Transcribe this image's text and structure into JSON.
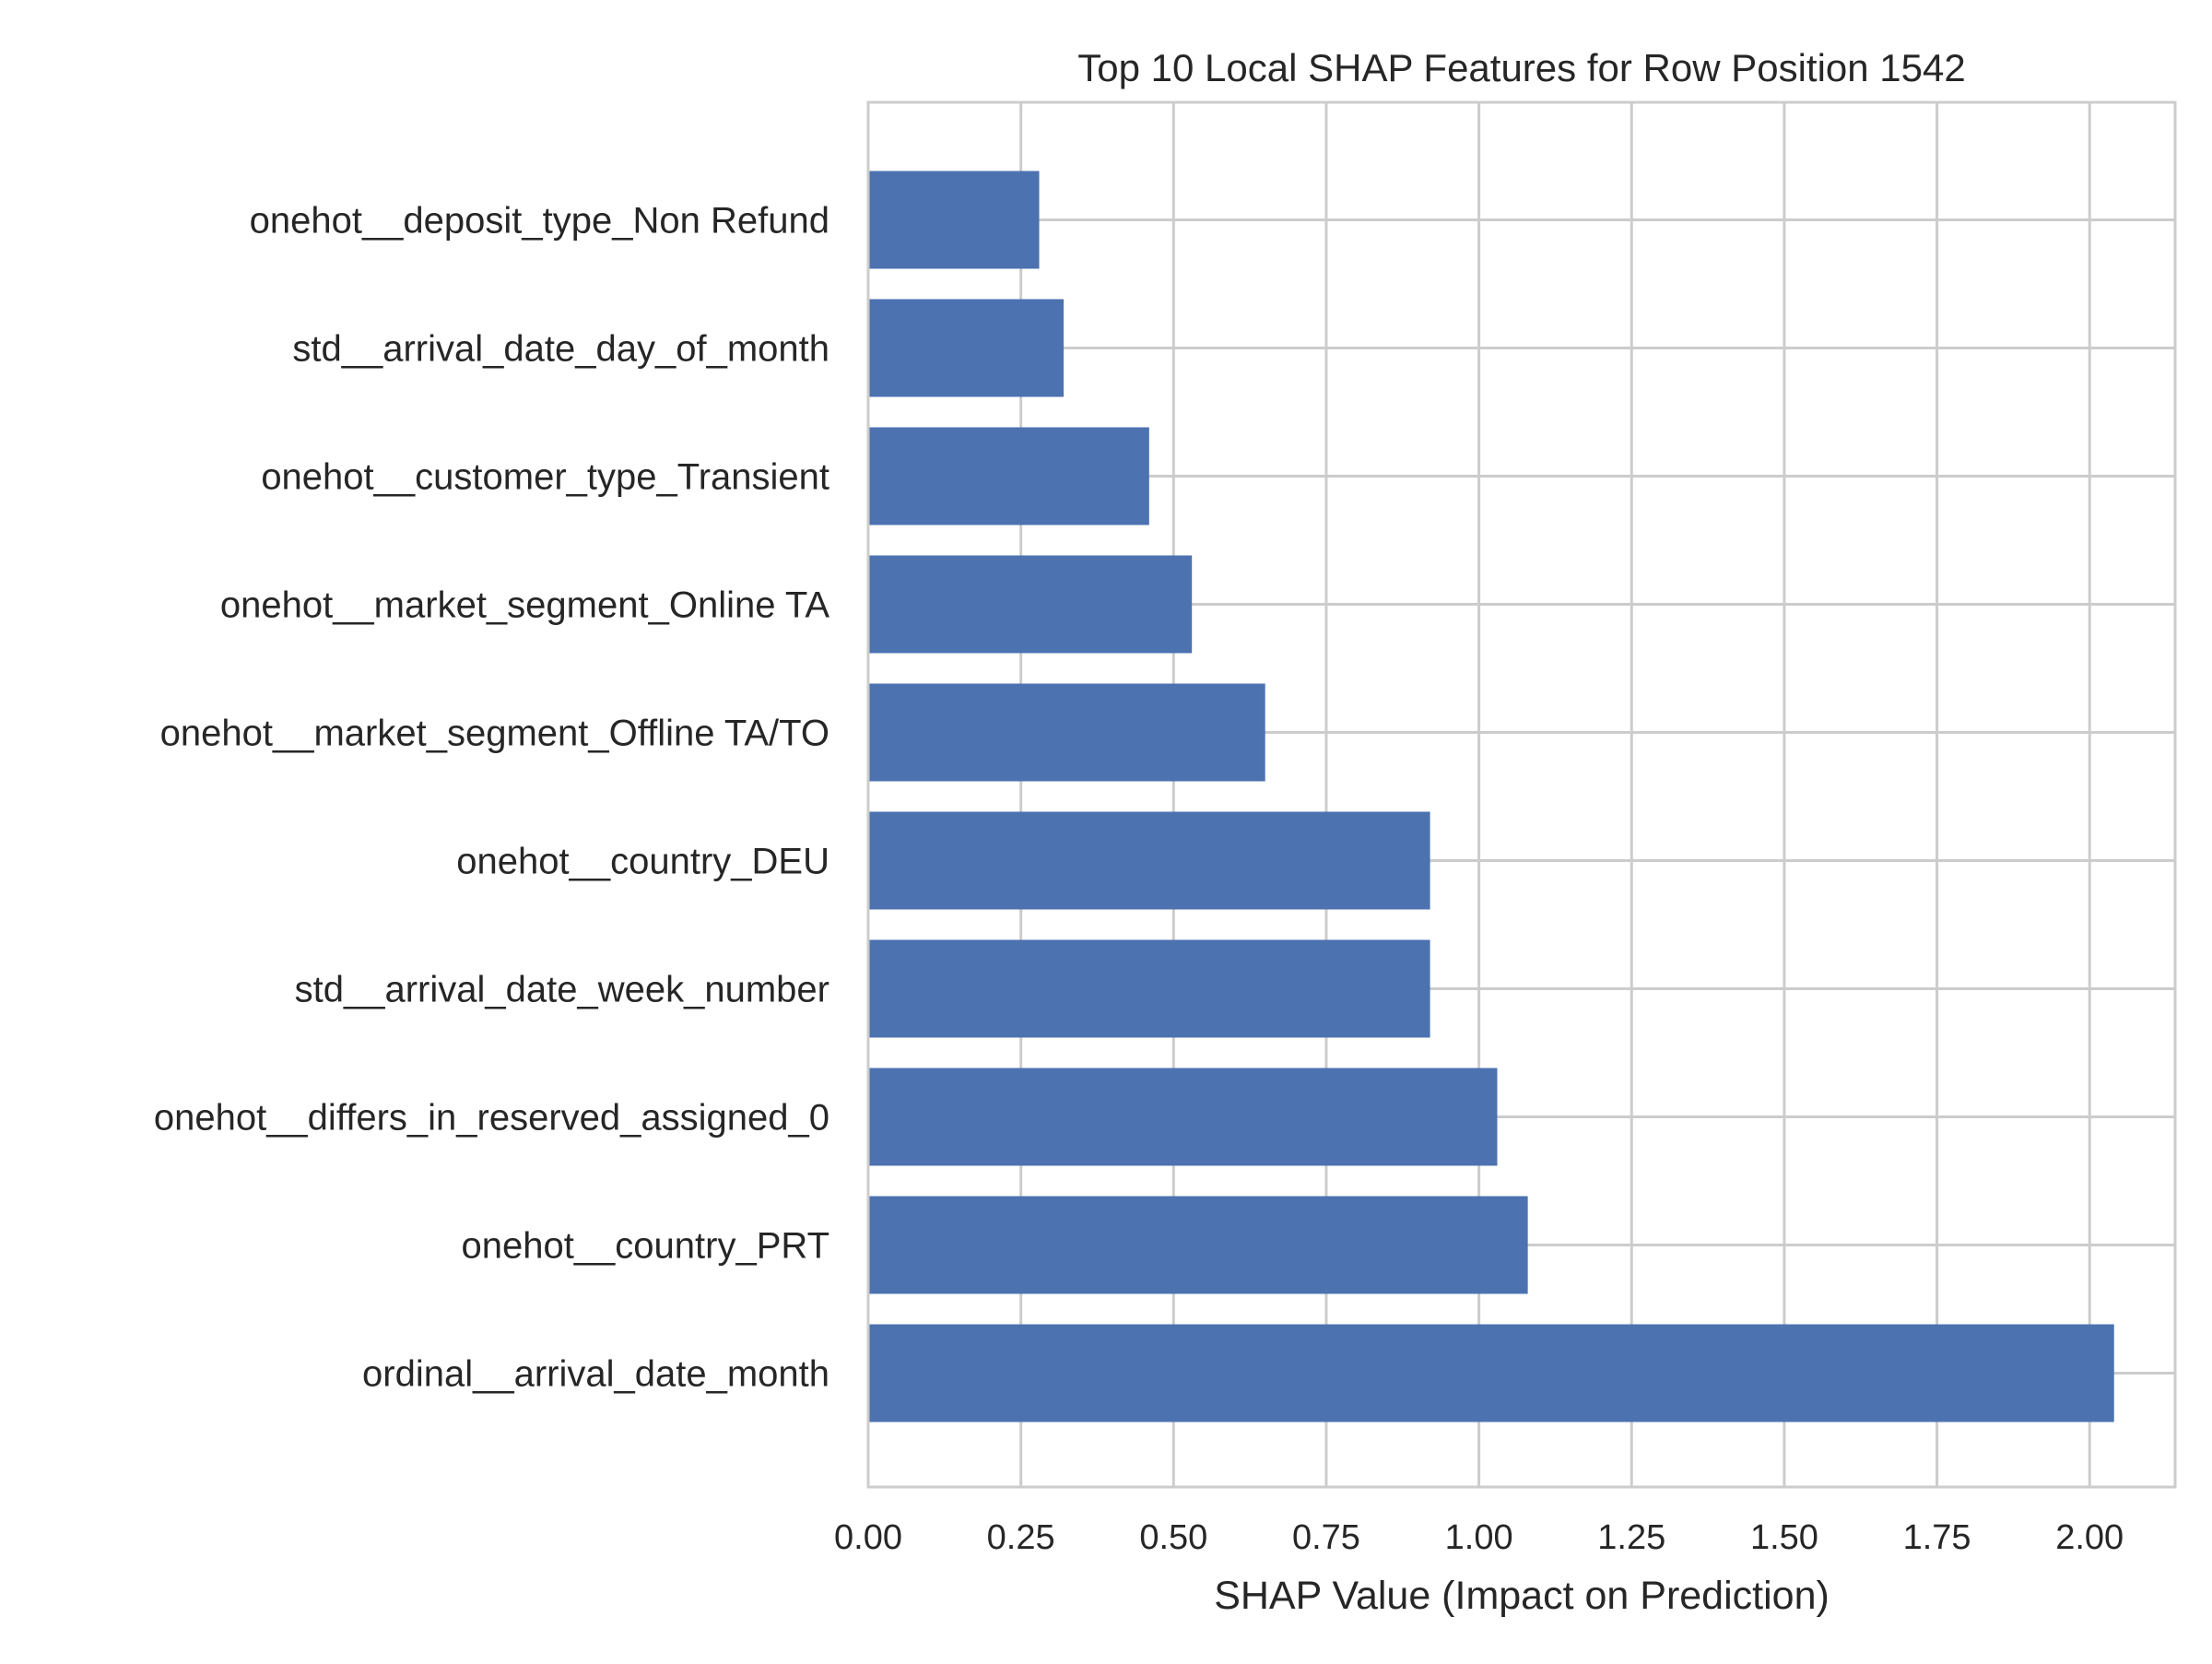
{
  "chart_data": {
    "type": "bar",
    "orientation": "horizontal",
    "title": "Top 10 Local SHAP Features for Row Position 1542",
    "xlabel": "SHAP Value (Impact on Prediction)",
    "ylabel": "",
    "xlim": [
      0.0,
      2.14
    ],
    "x_ticks": [
      "0.00",
      "0.25",
      "0.50",
      "0.75",
      "1.00",
      "1.25",
      "1.50",
      "1.75",
      "2.00"
    ],
    "grid": true,
    "bar_color": "#4c72b0",
    "categories": [
      "onehot__deposit_type_Non Refund",
      "std__arrival_date_day_of_month",
      "onehot__customer_type_Transient",
      "onehot__market_segment_Online TA",
      "onehot__market_segment_Offline TA/TO",
      "onehot__country_DEU",
      "std__arrival_date_week_number",
      "onehot__differs_in_reserved_assigned_0",
      "onehot__country_PRT",
      "ordinal__arrival_date_month"
    ],
    "values": [
      0.28,
      0.32,
      0.46,
      0.53,
      0.65,
      0.92,
      0.92,
      1.03,
      1.08,
      2.04
    ]
  }
}
